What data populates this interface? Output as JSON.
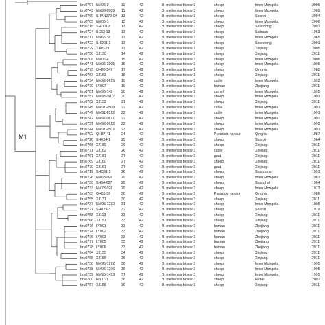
{
  "clade_label": "M1",
  "rows": [
    {
      "id": "bru0707",
      "strain": "NM06-3",
      "mlva": "11",
      "loci": "42",
      "species": "B. melitensis biovar 3",
      "host": "sheep",
      "location": "Inner Mongolia",
      "year": "2006"
    },
    {
      "id": "bru0743",
      "strain": "NM89-0909",
      "mlva": "11",
      "loci": "42",
      "species": "B. melitensis biovar 3",
      "host": "sheep",
      "location": "Inner Mongolia",
      "year": "1989"
    },
    {
      "id": "bru0760",
      "strain": "SHAN079-04",
      "mlva": "13",
      "loci": "42",
      "species": "B. melitensis biovar 3",
      "host": "sheep",
      "location": "Shanxi",
      "year": "2004"
    },
    {
      "id": "bru0705",
      "strain": "NM06-1",
      "mlva": "13",
      "loci": "42",
      "species": "B. melitensis biovar 3",
      "host": "sheep",
      "location": "Inner Mongolia",
      "year": "2006"
    },
    {
      "id": "bru0715",
      "strain": "SHD01-8",
      "mlva": "13",
      "loci": "42",
      "species": "B. melitensis biovar 3",
      "host": "sheep",
      "location": "Shandong",
      "year": "2001"
    },
    {
      "id": "bru0724",
      "strain": "SC63-13",
      "mlva": "13",
      "loci": "42",
      "species": "B. melitensis biovar 3",
      "host": "sheep",
      "location": "Sichuan",
      "year": "1963"
    },
    {
      "id": "bru0717",
      "strain": "NM65-38",
      "mlva": "13",
      "loci": "42",
      "species": "B. melitensis biovar 3",
      "host": "sheep",
      "location": "Inner Mongolia",
      "year": "1965"
    },
    {
      "id": "bru0722",
      "strain": "SHD01-1",
      "mlva": "13",
      "loci": "42",
      "species": "B. melitensis biovar 3",
      "host": "sheep",
      "location": "Shandong",
      "year": "2001"
    },
    {
      "id": "bru0729",
      "strain": "XJ05-29",
      "mlva": "13",
      "loci": "42",
      "species": "B. melitensis biovar 1",
      "host": "sheep",
      "location": "Xinjiang",
      "year": "2005"
    },
    {
      "id": "bru0750",
      "strain": "XJ130",
      "mlva": "14",
      "loci": "42",
      "species": "B. melitensis biovar 3",
      "host": "sheep",
      "location": "Xinjiang",
      "year": "2011"
    },
    {
      "id": "bru0708",
      "strain": "NM06-4",
      "mlva": "15",
      "loci": "42",
      "species": "B. melitensis biovar 3",
      "host": "sheep",
      "location": "Inner Mongolia",
      "year": "2006"
    },
    {
      "id": "bru0741",
      "strain": "NM96-1005",
      "mlva": "16",
      "loci": "42",
      "species": "B. melitensis biovar 3",
      "host": "sheep",
      "location": "Inner Mongolia",
      "year": "1996"
    },
    {
      "id": "bru0773",
      "strain": "QH80-347",
      "mlva": "17",
      "loci": "42",
      "species": "B. melitensis biovar 1",
      "host": "sheep",
      "location": "Qinghai",
      "year": "1980"
    },
    {
      "id": "bru0763",
      "strain": "XJ153",
      "mlva": "18",
      "loci": "42",
      "species": "B. melitensis biovar 1",
      "host": "sheep",
      "location": "Xinjiang",
      "year": "2011"
    },
    {
      "id": "bru0754",
      "strain": "NM92-0615",
      "mlva": "19",
      "loci": "42",
      "species": "B. melitensis biovar 3",
      "host": "cattle",
      "location": "Inner Mongolia",
      "year": "1992"
    },
    {
      "id": "bru0779",
      "strain": "LY007",
      "mlva": "19",
      "loci": "42",
      "species": "B. melitensis biovar 3",
      "host": "human",
      "location": "Zhejiang",
      "year": "2011"
    },
    {
      "id": "bru0701",
      "strain": "NM95-148",
      "mlva": "20",
      "loci": "42",
      "species": "B. melitensis biovar 2",
      "host": "camel",
      "location": "Inner Mongolia",
      "year": "1995"
    },
    {
      "id": "bru0757",
      "strain": "NM93-0907",
      "mlva": "20",
      "loci": "42",
      "species": "B. melitensis biovar 3",
      "host": "sheep",
      "location": "Inner Mongolia",
      "year": "1993"
    },
    {
      "id": "bru0762",
      "strain": "XJ152",
      "mlva": "21",
      "loci": "42",
      "species": "B. melitensis biovar 3",
      "host": "sheep",
      "location": "Xinjiang",
      "year": "2011"
    },
    {
      "id": "bru0745",
      "strain": "NM91-0508",
      "mlva": "22",
      "loci": "42",
      "species": "B. melitensis biovar 3",
      "host": "cattle",
      "location": "Inner Mongolia",
      "year": "1991"
    },
    {
      "id": "bru0749",
      "strain": "NM91-0512",
      "mlva": "22",
      "loci": "42",
      "species": "B. melitensis biovar 3",
      "host": "cattle",
      "location": "Inner Mongolia",
      "year": "1991"
    },
    {
      "id": "bru0742",
      "strain": "NM92-0611",
      "mlva": "22",
      "loci": "42",
      "species": "B. melitensis biovar 3",
      "host": "sheep",
      "location": "Inner Mongolia",
      "year": "1992"
    },
    {
      "id": "bru0751",
      "strain": "NM92-0612",
      "mlva": "22",
      "loci": "42",
      "species": "B. melitensis biovar 3",
      "host": "sheep",
      "location": "Inner Mongolia",
      "year": "1992"
    },
    {
      "id": "bru0744",
      "strain": "NM91-0502",
      "mlva": "23",
      "loci": "42",
      "species": "B. melitensis biovar 3",
      "host": "sheep",
      "location": "Inner Mongolia",
      "year": "1991"
    },
    {
      "id": "bru0702",
      "strain": "QH87-41",
      "mlva": "24",
      "loci": "42",
      "species": "B. melitensis biovar 3",
      "host": "Pseudois nayaur",
      "location": "Qinghai",
      "year": "1987"
    },
    {
      "id": "bru0720",
      "strain": "SHX64-1",
      "mlva": "25",
      "loci": "42",
      "species": "B. melitensis biovar 3",
      "host": "sheep",
      "location": "Shanxi",
      "year": "1964"
    },
    {
      "id": "bru0768",
      "strain": "XJ159",
      "mlva": "26",
      "loci": "42",
      "species": "B. melitensis biovar 3",
      "host": "sheep",
      "location": "Xinjiang",
      "year": "2011"
    },
    {
      "id": "bru0771",
      "strain": "XJ162",
      "mlva": "26",
      "loci": "42",
      "species": "B. melitensis biovar 3",
      "host": "cattle",
      "location": "Xinjiang",
      "year": "2011"
    },
    {
      "id": "bru0761",
      "strain": "XJ151",
      "mlva": "27",
      "loci": "42",
      "species": "B. melitensis biovar 3",
      "host": "goat",
      "location": "Xinjiang",
      "year": "2011"
    },
    {
      "id": "bru0769",
      "strain": "XJ160",
      "mlva": "27",
      "loci": "42",
      "species": "B. melitensis biovar 3",
      "host": "sheep",
      "location": "Xinjiang",
      "year": "2011"
    },
    {
      "id": "bru0770",
      "strain": "XJ161",
      "mlva": "27",
      "loci": "42",
      "species": "B. melitensis biovar 3",
      "host": "goat",
      "location": "Xinjiang",
      "year": "2011"
    },
    {
      "id": "bru0719",
      "strain": "SHD91-1",
      "mlva": "28",
      "loci": "42",
      "species": "B. melitensis biovar 3",
      "host": "sheep",
      "location": "Shandong",
      "year": "1991"
    },
    {
      "id": "bru0726",
      "strain": "NM63-008",
      "mlva": "29",
      "loci": "42",
      "species": "B. melitensis biovar 2",
      "host": "sheep",
      "location": "Inner Mongolia",
      "year": "1963"
    },
    {
      "id": "bru0730",
      "strain": "SH64-027",
      "mlva": "29",
      "loci": "42",
      "species": "B. melitensis biovar 2",
      "host": "sheep",
      "location": "Shanghai",
      "year": "1964"
    },
    {
      "id": "bru0733",
      "strain": "NM73-026",
      "mlva": "29",
      "loci": "42",
      "species": "B. melitensis biovar 2",
      "host": "sheep",
      "location": "Inner Mongolia",
      "year": "1973"
    },
    {
      "id": "bru0703",
      "strain": "QH86-39",
      "mlva": "30",
      "loci": "42",
      "species": "B. melitensis biovar 3",
      "host": "Pseudois nayaur",
      "location": "Qinghai",
      "year": "1986"
    },
    {
      "id": "bru0755",
      "strain": "XJ131",
      "mlva": "30",
      "loci": "42",
      "species": "B. melitensis biovar 3",
      "host": "sheep",
      "location": "Xinjiang",
      "year": "2011"
    },
    {
      "id": "bru0737",
      "strain": "NM95-1232",
      "mlva": "31",
      "loci": "42",
      "species": "B. melitensis biovar 3",
      "host": "sheep",
      "location": "Inner Mongolia",
      "year": "1995"
    },
    {
      "id": "bru0721",
      "strain": "SHX79-3",
      "mlva": "32",
      "loci": "42",
      "species": "B. melitensis biovar 3",
      "host": "sheep",
      "location": "Shanxi",
      "year": "1979"
    },
    {
      "id": "bru0758",
      "strain": "XJ113",
      "mlva": "33",
      "loci": "42",
      "species": "B. melitensis biovar 3",
      "host": "sheep",
      "location": "Xinjiang",
      "year": "2011"
    },
    {
      "id": "bru0766",
      "strain": "XJ157",
      "mlva": "33",
      "loci": "42",
      "species": "B. melitensis biovar 3",
      "host": "sheep",
      "location": "Xinjiang",
      "year": "2011"
    },
    {
      "id": "bru0776",
      "strain": "LY001",
      "mlva": "33",
      "loci": "42",
      "species": "B. melitensis biovar 3",
      "host": "human",
      "location": "Zhejiang",
      "year": "2011"
    },
    {
      "id": "bru0774",
      "strain": "LY002",
      "mlva": "33",
      "loci": "42",
      "species": "B. melitensis biovar 3",
      "host": "human",
      "location": "Zhejiang",
      "year": "2011"
    },
    {
      "id": "bru0775",
      "strain": "LY003",
      "mlva": "33",
      "loci": "42",
      "species": "B. melitensis biovar 3",
      "host": "human",
      "location": "Zhejiang",
      "year": "2011"
    },
    {
      "id": "bru0777",
      "strain": "LY005",
      "mlva": "33",
      "loci": "42",
      "species": "B. melitensis biovar 3",
      "host": "human",
      "location": "Zhejiang",
      "year": "2011"
    },
    {
      "id": "bru0778",
      "strain": "LY006",
      "mlva": "33",
      "loci": "42",
      "species": "B. melitensis biovar 3",
      "host": "human",
      "location": "Zhejiang",
      "year": "2011"
    },
    {
      "id": "bru0764",
      "strain": "XJ155",
      "mlva": "34",
      "loci": "42",
      "species": "B. melitensis biovar 3",
      "host": "sheep",
      "location": "Xinjiang",
      "year": "2011"
    },
    {
      "id": "bru0765",
      "strain": "XJ156",
      "mlva": "35",
      "loci": "42",
      "species": "B. melitensis biovar 3",
      "host": "sheep",
      "location": "Xinjiang",
      "year": "2011"
    },
    {
      "id": "bru0736",
      "strain": "NM95-1212",
      "mlva": "36",
      "loci": "42",
      "species": "B. melitensis biovar 3",
      "host": "sheep",
      "location": "Inner Mongolia",
      "year": "1995"
    },
    {
      "id": "bru0738",
      "strain": "NM95-1206",
      "mlva": "36",
      "loci": "42",
      "species": "B. melitensis biovar 3",
      "host": "sheep",
      "location": "Inner Mongolia",
      "year": "1995"
    },
    {
      "id": "bru0739",
      "strain": "NM95-1453",
      "mlva": "37",
      "loci": "42",
      "species": "B. melitensis biovar 3",
      "host": "sheep",
      "location": "Inner Mongolia",
      "year": "1995"
    },
    {
      "id": "bru0700",
      "strain": "HB07-1",
      "mlva": "38",
      "loci": "42",
      "species": "B. melitensis biovar 3",
      "host": "sheep",
      "location": "Hebei",
      "year": "2007"
    },
    {
      "id": "bru0767",
      "strain": "XJ158",
      "mlva": "39",
      "loci": "42",
      "species": "B. melitensis biovar 3",
      "host": "sheep",
      "location": "Xinjiang",
      "year": "2011"
    }
  ]
}
